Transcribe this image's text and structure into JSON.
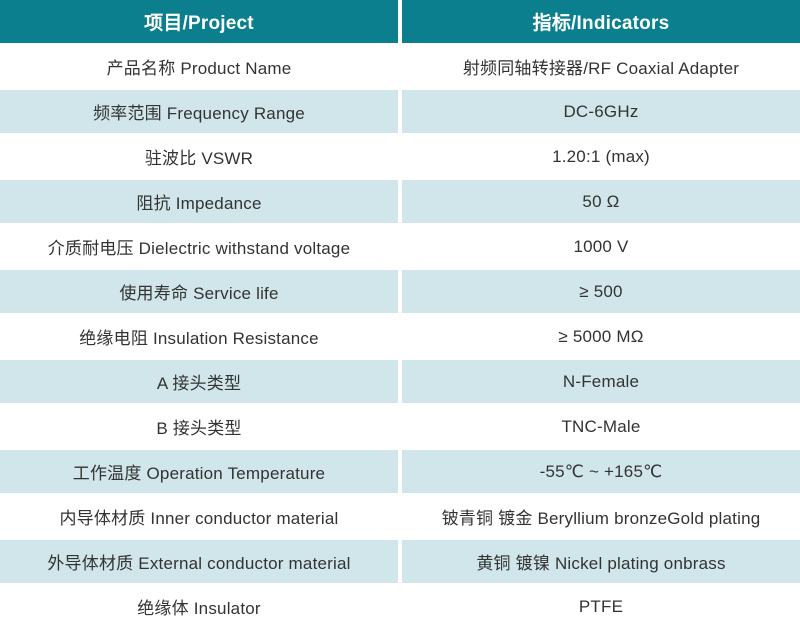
{
  "table": {
    "header": {
      "project_label": "项目/Project",
      "indicators_label": "指标/Indicators"
    },
    "rows": [
      {
        "project": "产品名称 Product Name",
        "indicator": "射频同轴转接器/RF Coaxial Adapter"
      },
      {
        "project": "频率范围 Frequency Range",
        "indicator": "DC-6GHz"
      },
      {
        "project": "驻波比 VSWR",
        "indicator": "1.20:1 (max)"
      },
      {
        "project": "阻抗 Impedance",
        "indicator": "50 Ω"
      },
      {
        "project": "介质耐电压 Dielectric withstand voltage",
        "indicator": "1000 V"
      },
      {
        "project": "使用寿命 Service life",
        "indicator": "≥ 500"
      },
      {
        "project": "绝缘电阻 Insulation Resistance",
        "indicator": "≥ 5000 MΩ"
      },
      {
        "project": "A 接头类型",
        "indicator": "N-Female"
      },
      {
        "project": "B 接头类型",
        "indicator": "TNC-Male"
      },
      {
        "project": "工作温度 Operation Temperature",
        "indicator": "-55℃ ~ +165℃"
      },
      {
        "project": "内导体材质 Inner conductor material",
        "indicator": "铍青铜 镀金 Beryllium bronzeGold plating"
      },
      {
        "project": "外导体材质 External conductor material",
        "indicator": "黄铜 镀镍 Nickel plating onbrass"
      },
      {
        "project": "绝缘体 Insulator",
        "indicator": "PTFE"
      }
    ],
    "colors": {
      "header_bg": "#0b7f8e",
      "header_text": "#ffffff",
      "row_alt_bg": "#d0e6ea",
      "row_bg": "#ffffff",
      "body_text": "#333333"
    }
  }
}
